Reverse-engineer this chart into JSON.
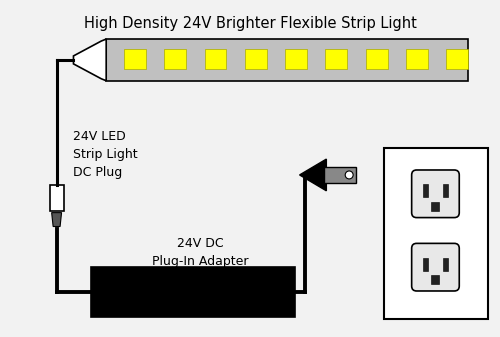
{
  "title": "High Density 24V Brighter Flexible Strip Light",
  "label_plug": "24V LED\nStrip Light\nDC Plug",
  "label_adapter": "24V DC\nPlug-In Adapter",
  "bg_color": "#f2f2f2",
  "strip_color": "#c0c0c0",
  "led_color": "#ffff00",
  "wire_color": "#000000",
  "outlet_wall_color": "#ffffff",
  "adapter_color": "#000000",
  "outlet_face_color": "#e8e8e8"
}
